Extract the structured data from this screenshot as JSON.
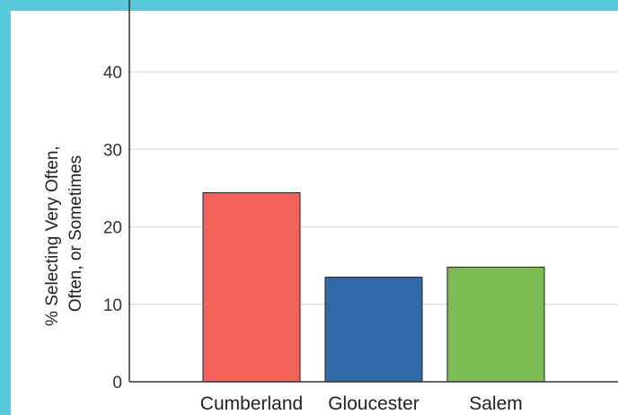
{
  "chart_data": {
    "type": "bar",
    "categories": [
      "Cumberland",
      "Gloucester",
      "Salem"
    ],
    "values": [
      24.4,
      13.5,
      14.8
    ],
    "colors": [
      "#f4625a",
      "#2f6aa8",
      "#7dbb55"
    ],
    "ylabel_lines": [
      "% Selecting Very Often,",
      "Often, or Sometimes"
    ],
    "xlabel": "",
    "ylim": [
      0,
      50
    ],
    "yticks": [
      0,
      10,
      20,
      30,
      40
    ],
    "grid": true
  },
  "theme": {
    "frame_color": "#5ac8dc",
    "grid_color": "#dddddd",
    "axis_color": "#333333"
  }
}
